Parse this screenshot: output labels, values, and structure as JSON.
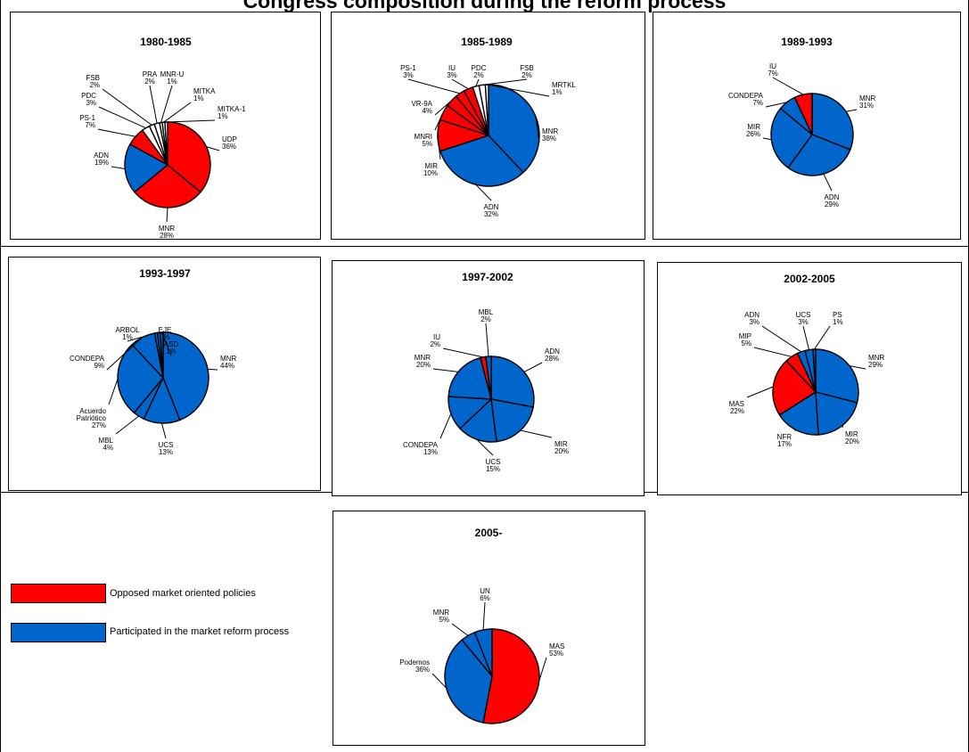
{
  "page": {
    "title": "Congress composition during the reform process"
  },
  "colors": {
    "opposed": "#ff0000",
    "participated": "#0066cc",
    "outline": "#000000"
  },
  "legend": {
    "items": [
      {
        "label": "Opposed market oriented policies",
        "color": "#ff0000",
        "group": "opposed"
      },
      {
        "label": "Participated in the market reform process",
        "color": "#0066cc",
        "group": "participated"
      }
    ]
  },
  "chart_data": [
    {
      "type": "pie",
      "title": "1980-1985",
      "slices": [
        {
          "label": "UDP",
          "value": 36,
          "group": "opposed"
        },
        {
          "label": "MNR",
          "value": 28,
          "group": "opposed"
        },
        {
          "label": "ADN",
          "value": 19,
          "group": "participated"
        },
        {
          "label": "PS-1",
          "value": 7,
          "group": "opposed"
        },
        {
          "label": "PDC",
          "value": 3,
          "group": "other"
        },
        {
          "label": "FSB",
          "value": 2,
          "group": "other"
        },
        {
          "label": "PRA",
          "value": 2,
          "group": "other"
        },
        {
          "label": "MNR-U",
          "value": 1,
          "group": "other"
        },
        {
          "label": "MITKA",
          "value": 1,
          "group": "other"
        },
        {
          "label": "MITKA-1",
          "value": 1,
          "group": "other"
        }
      ]
    },
    {
      "type": "pie",
      "title": "1985-1989",
      "slices": [
        {
          "label": "MNR",
          "value": 38,
          "group": "participated"
        },
        {
          "label": "ADN",
          "value": 32,
          "group": "participated"
        },
        {
          "label": "MIR",
          "value": 10,
          "group": "opposed"
        },
        {
          "label": "MNRI",
          "value": 5,
          "group": "opposed"
        },
        {
          "label": "VR-9A",
          "value": 4,
          "group": "opposed"
        },
        {
          "label": "PS-1",
          "value": 3,
          "group": "opposed"
        },
        {
          "label": "IU",
          "value": 3,
          "group": "opposed"
        },
        {
          "label": "PDC",
          "value": 2,
          "group": "other"
        },
        {
          "label": "FSB",
          "value": 2,
          "group": "other"
        },
        {
          "label": "MRTKL",
          "value": 1,
          "group": "other"
        }
      ]
    },
    {
      "type": "pie",
      "title": "1989-1993",
      "slices": [
        {
          "label": "MNR",
          "value": 31,
          "group": "participated"
        },
        {
          "label": "ADN",
          "value": 29,
          "group": "participated"
        },
        {
          "label": "MIR",
          "value": 26,
          "group": "participated"
        },
        {
          "label": "CONDEPA",
          "value": 7,
          "group": "participated"
        },
        {
          "label": "IU",
          "value": 7,
          "group": "opposed"
        }
      ]
    },
    {
      "type": "pie",
      "title": "1993-1997",
      "slices": [
        {
          "label": "MNR",
          "value": 44,
          "group": "participated"
        },
        {
          "label": "UCS",
          "value": 13,
          "group": "participated"
        },
        {
          "label": "MBL",
          "value": 4,
          "group": "participated"
        },
        {
          "label": "Acuerdo Patriótico",
          "value": 27,
          "group": "participated"
        },
        {
          "label": "CONDEPA",
          "value": 9,
          "group": "participated"
        },
        {
          "label": "ARBOL",
          "value": 1,
          "group": "participated"
        },
        {
          "label": "EJE",
          "value": 1,
          "group": "participated"
        },
        {
          "label": "ASD",
          "value": 1,
          "group": "participated"
        }
      ]
    },
    {
      "type": "pie",
      "title": "1997-2002",
      "slices": [
        {
          "label": "ADN",
          "value": 28,
          "group": "participated"
        },
        {
          "label": "MIR",
          "value": 20,
          "group": "participated"
        },
        {
          "label": "UCS",
          "value": 15,
          "group": "participated"
        },
        {
          "label": "CONDEPA",
          "value": 13,
          "group": "participated"
        },
        {
          "label": "MNR",
          "value": 20,
          "group": "participated"
        },
        {
          "label": "IU",
          "value": 2,
          "group": "opposed"
        },
        {
          "label": "MBL",
          "value": 2,
          "group": "participated"
        }
      ]
    },
    {
      "type": "pie",
      "title": "2002-2005",
      "slices": [
        {
          "label": "MNR",
          "value": 29,
          "group": "participated"
        },
        {
          "label": "MIR",
          "value": 20,
          "group": "participated"
        },
        {
          "label": "NFR",
          "value": 17,
          "group": "participated"
        },
        {
          "label": "MAS",
          "value": 22,
          "group": "opposed"
        },
        {
          "label": "MIP",
          "value": 5,
          "group": "opposed"
        },
        {
          "label": "ADN",
          "value": 3,
          "group": "participated"
        },
        {
          "label": "UCS",
          "value": 3,
          "group": "participated"
        },
        {
          "label": "PS",
          "value": 1,
          "group": "participated"
        }
      ]
    },
    {
      "type": "pie",
      "title": "2005-",
      "slices": [
        {
          "label": "MAS",
          "value": 53,
          "group": "opposed"
        },
        {
          "label": "Podemos",
          "value": 36,
          "group": "participated"
        },
        {
          "label": "MNR",
          "value": 5,
          "group": "participated"
        },
        {
          "label": "UN",
          "value": 6,
          "group": "participated"
        }
      ]
    }
  ]
}
